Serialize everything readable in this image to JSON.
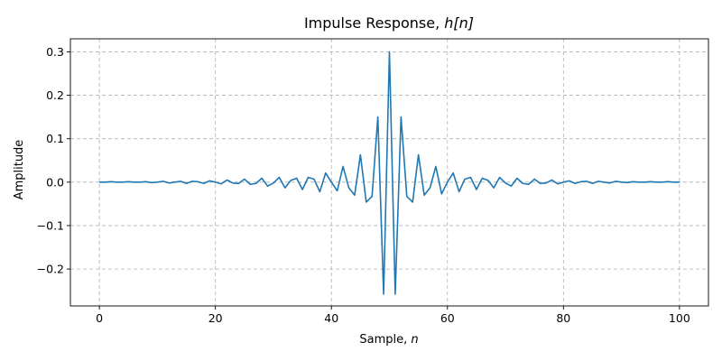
{
  "chart_data": {
    "type": "line",
    "title": "Impulse Response, ",
    "title_math": "h[n]",
    "xlabel": "Sample, ",
    "xlabel_math": "n",
    "ylabel": "Amplitude",
    "xlim": [
      -5,
      105
    ],
    "ylim": [
      -0.285,
      0.33
    ],
    "grid": true,
    "line_color": "#1f77b4",
    "x_ticks": [
      0,
      20,
      40,
      60,
      80,
      100
    ],
    "x_tick_labels": [
      "0",
      "20",
      "40",
      "60",
      "80",
      "100"
    ],
    "y_ticks": [
      -0.2,
      -0.1,
      0.0,
      0.1,
      0.2,
      0.3
    ],
    "y_tick_labels": [
      "−0.2",
      "−0.1",
      "0.0",
      "0.1",
      "0.2",
      "0.3"
    ],
    "series": [
      {
        "x": [
          0,
          1,
          2,
          3,
          4,
          5,
          6,
          7,
          8,
          9,
          10,
          11,
          12,
          13,
          14,
          15,
          16,
          17,
          18,
          19,
          20,
          21,
          22,
          23,
          24,
          25,
          26,
          27,
          28,
          29,
          30,
          31,
          32,
          33,
          34,
          35,
          36,
          37,
          38,
          39,
          40,
          41,
          42,
          43,
          44,
          45,
          46,
          47,
          48,
          49,
          50,
          51,
          52,
          53,
          54,
          55,
          56,
          57,
          58,
          59,
          60,
          61,
          62,
          63,
          64,
          65,
          66,
          67,
          68,
          69,
          70,
          71,
          72,
          73,
          74,
          75,
          76,
          77,
          78,
          79,
          80,
          81,
          82,
          83,
          84,
          85,
          86,
          87,
          88,
          89,
          90,
          91,
          92,
          93,
          94,
          95,
          96,
          97,
          98,
          99,
          100
        ],
        "values": [
          0.0,
          0.0,
          0.001,
          0.0,
          0.0,
          0.001,
          0.0,
          0.0,
          0.001,
          -0.001,
          0.0,
          0.002,
          -0.002,
          0.0,
          0.002,
          -0.003,
          0.002,
          0.001,
          -0.003,
          0.003,
          0.0,
          -0.004,
          0.005,
          -0.002,
          -0.003,
          0.007,
          -0.005,
          -0.003,
          0.009,
          -0.009,
          -0.002,
          0.011,
          -0.013,
          0.004,
          0.009,
          -0.017,
          0.011,
          0.007,
          -0.022,
          0.021,
          0.0,
          -0.02,
          0.036,
          -0.013,
          -0.03,
          0.063,
          -0.046,
          -0.033,
          0.15,
          -0.258,
          0.3,
          -0.258,
          0.15,
          -0.033,
          -0.046,
          0.063,
          -0.03,
          -0.013,
          0.036,
          -0.027,
          0.0,
          0.021,
          -0.022,
          0.007,
          0.011,
          -0.017,
          0.009,
          0.004,
          -0.013,
          0.011,
          -0.002,
          -0.009,
          0.009,
          -0.003,
          -0.005,
          0.007,
          -0.003,
          -0.002,
          0.005,
          -0.004,
          0.0,
          0.003,
          -0.003,
          0.001,
          0.002,
          -0.003,
          0.002,
          0.0,
          -0.002,
          0.002,
          0.0,
          -0.001,
          0.001,
          0.0,
          0.0,
          0.001,
          0.0,
          0.0,
          0.001,
          0.0,
          0.0
        ]
      }
    ]
  }
}
